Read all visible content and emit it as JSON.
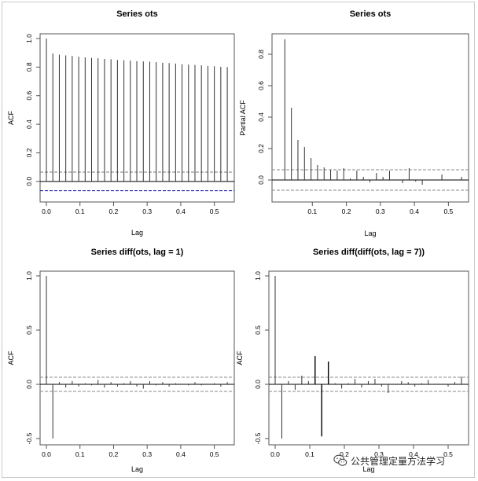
{
  "chart_data": [
    {
      "type": "bar",
      "title": "Series  ots",
      "xlabel": "Lag",
      "ylabel": "ACF",
      "xlim": [
        0,
        0.55
      ],
      "ylim": [
        -0.1,
        1.0
      ],
      "xticks": [
        0.0,
        0.1,
        0.2,
        0.3,
        0.4,
        0.5
      ],
      "xtick_labels": [
        "0.0",
        "0.1",
        "0.2",
        "0.3",
        "0.4",
        "0.5"
      ],
      "yticks": [
        0.0,
        0.2,
        0.4,
        0.6,
        0.8,
        1.0
      ],
      "ytick_labels": [
        "0.0",
        "0.2",
        "0.4",
        "0.6",
        "0.8",
        "1.0"
      ],
      "conf_band": 0.065,
      "zero_line": true,
      "lags": [
        0.0,
        0.0192,
        0.0385,
        0.0577,
        0.0769,
        0.0962,
        0.1154,
        0.1346,
        0.1538,
        0.1731,
        0.1923,
        0.2115,
        0.2308,
        0.25,
        0.2692,
        0.2885,
        0.3077,
        0.3269,
        0.3462,
        0.3654,
        0.3846,
        0.4038,
        0.4231,
        0.4423,
        0.4615,
        0.4808,
        0.5,
        0.5192,
        0.5385
      ],
      "values": [
        1.0,
        0.895,
        0.887,
        0.882,
        0.878,
        0.872,
        0.868,
        0.864,
        0.862,
        0.857,
        0.855,
        0.85,
        0.848,
        0.845,
        0.842,
        0.84,
        0.838,
        0.834,
        0.83,
        0.828,
        0.825,
        0.82,
        0.818,
        0.815,
        0.812,
        0.808,
        0.806,
        0.802,
        0.8
      ]
    },
    {
      "type": "bar",
      "title": "Series  ots",
      "xlabel": "Lag",
      "ylabel": "Partial ACF",
      "xlim": [
        0,
        0.55
      ],
      "ylim": [
        -0.1,
        0.9
      ],
      "xticks": [
        0.1,
        0.2,
        0.3,
        0.4,
        0.5
      ],
      "xtick_labels": [
        "0.1",
        "0.2",
        "0.3",
        "0.4",
        "0.5"
      ],
      "yticks": [
        0.0,
        0.2,
        0.4,
        0.6,
        0.8
      ],
      "ytick_labels": [
        "0.0",
        "0.2",
        "0.4",
        "0.6",
        "0.8"
      ],
      "conf_band": 0.065,
      "zero_line": true,
      "lags": [
        0.0192,
        0.0385,
        0.0577,
        0.0769,
        0.0962,
        0.1154,
        0.1346,
        0.1538,
        0.1731,
        0.1923,
        0.2115,
        0.2308,
        0.25,
        0.2692,
        0.2885,
        0.3077,
        0.3269,
        0.3462,
        0.3654,
        0.3846,
        0.4038,
        0.4231,
        0.4423,
        0.4615,
        0.4808,
        0.5,
        0.5192,
        0.5385
      ],
      "values": [
        0.895,
        0.46,
        0.255,
        0.21,
        0.14,
        0.095,
        0.08,
        0.065,
        0.06,
        0.075,
        0.01,
        0.06,
        0.02,
        -0.015,
        0.045,
        0.02,
        0.06,
        0.0,
        -0.02,
        0.075,
        -0.01,
        -0.03,
        0.0,
        0.0,
        0.035,
        0.0,
        0.0,
        0.02
      ]
    },
    {
      "type": "bar",
      "title": "Series  diff(ots, lag = 1)",
      "xlabel": "Lag",
      "ylabel": "ACF",
      "xlim": [
        0,
        0.55
      ],
      "ylim": [
        -0.5,
        1.0
      ],
      "xticks": [
        0.0,
        0.1,
        0.2,
        0.3,
        0.4,
        0.5
      ],
      "xtick_labels": [
        "0.0",
        "0.1",
        "0.2",
        "0.3",
        "0.4",
        "0.5"
      ],
      "yticks": [
        -0.5,
        0.0,
        0.5,
        1.0
      ],
      "ytick_labels": [
        "-0.5",
        "0.0",
        "0.5",
        "1.0"
      ],
      "conf_band": 0.065,
      "zero_line": true,
      "lags": [
        0.0,
        0.0192,
        0.0385,
        0.0577,
        0.0769,
        0.0962,
        0.1154,
        0.1346,
        0.1538,
        0.1731,
        0.1923,
        0.2115,
        0.2308,
        0.25,
        0.2692,
        0.2885,
        0.3077,
        0.3269,
        0.3462,
        0.3654,
        0.3846,
        0.4038,
        0.4231,
        0.4423,
        0.4615,
        0.4808,
        0.5,
        0.5192,
        0.5385
      ],
      "values": [
        1.0,
        -0.5,
        0.02,
        -0.03,
        0.03,
        -0.02,
        0.01,
        -0.01,
        0.04,
        -0.03,
        0.02,
        -0.02,
        0.01,
        0.03,
        -0.02,
        -0.04,
        0.03,
        -0.01,
        0.02,
        -0.02,
        0.01,
        0.0,
        -0.01,
        0.02,
        -0.01,
        0.0,
        0.01,
        -0.02,
        0.02
      ]
    },
    {
      "type": "bar",
      "title": "Series  diff(diff(ots, lag = 7))",
      "xlabel": "Lag",
      "ylabel": "ACF",
      "xlim": [
        0,
        0.55
      ],
      "ylim": [
        -0.5,
        1.0
      ],
      "xticks": [
        0.0,
        0.1,
        0.2,
        0.3,
        0.4,
        0.5
      ],
      "xtick_labels": [
        "0.0",
        "0.1",
        "0.2",
        "0.3",
        "0.4",
        "0.5"
      ],
      "yticks": [
        -0.5,
        0.0,
        0.5,
        1.0
      ],
      "ytick_labels": [
        "-0.5",
        "0.0",
        "0.5",
        "1.0"
      ],
      "conf_band": 0.065,
      "zero_line": true,
      "lags": [
        0.0,
        0.0192,
        0.0385,
        0.0577,
        0.0769,
        0.0962,
        0.1154,
        0.1346,
        0.1538,
        0.1731,
        0.1923,
        0.2115,
        0.2308,
        0.25,
        0.2692,
        0.2885,
        0.3077,
        0.3269,
        0.3462,
        0.3654,
        0.3846,
        0.4038,
        0.4231,
        0.4423,
        0.4615,
        0.4808,
        0.5,
        0.5192,
        0.5385
      ],
      "values": [
        1.0,
        -0.5,
        0.03,
        -0.05,
        0.08,
        0.03,
        0.26,
        -0.48,
        0.21,
        0.01,
        -0.04,
        0.01,
        0.05,
        -0.03,
        0.03,
        0.05,
        -0.02,
        -0.08,
        0.0,
        0.03,
        0.02,
        -0.02,
        0.01,
        0.04,
        0.0,
        0.0,
        -0.02,
        0.02,
        0.07
      ]
    }
  ],
  "watermark": {
    "text": "公共管理定量方法学习",
    "icon": "wechat-icon"
  }
}
